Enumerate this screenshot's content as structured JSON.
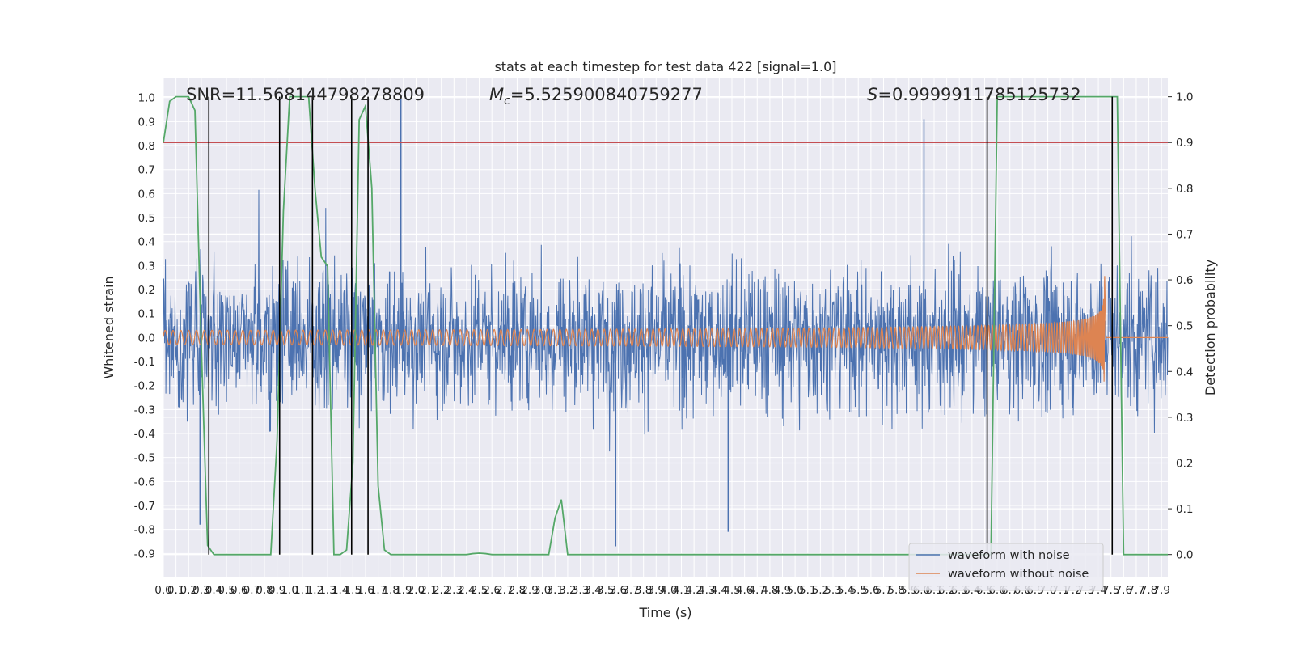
{
  "chart_data": {
    "type": "line",
    "title": "stats at each timestep for test data 422 [signal=1.0]",
    "xlabel": "Time (s)",
    "ylabel": "Whitened strain",
    "y2label": "Detection probability",
    "xlim": [
      0.0,
      7.95
    ],
    "ylim": [
      -1.0,
      1.08
    ],
    "y2lim": [
      -0.05,
      1.04
    ],
    "x_ticks": [
      0.0,
      0.1,
      0.2,
      0.3,
      0.4,
      0.5,
      0.6,
      0.7,
      0.8,
      0.9,
      1.0,
      1.1,
      1.2,
      1.3,
      1.4,
      1.5,
      1.6,
      1.7,
      1.8,
      1.9,
      2.0,
      2.1,
      2.2,
      2.3,
      2.4,
      2.5,
      2.6,
      2.7,
      2.8,
      2.9,
      3.0,
      3.1,
      3.2,
      3.3,
      3.4,
      3.5,
      3.6,
      3.7,
      3.8,
      3.9,
      4.0,
      4.1,
      4.2,
      4.3,
      4.4,
      4.5,
      4.6,
      4.7,
      4.8,
      4.9,
      5.0,
      5.1,
      5.2,
      5.3,
      5.4,
      5.5,
      5.6,
      5.7,
      5.8,
      5.9,
      6.0,
      6.1,
      6.2,
      6.3,
      6.4,
      6.5,
      6.6,
      6.7,
      6.8,
      6.9,
      7.0,
      7.1,
      7.2,
      7.3,
      7.4,
      7.5,
      7.6,
      7.7,
      7.8,
      7.9
    ],
    "y_ticks": [
      -0.9,
      -0.8,
      -0.7,
      -0.6,
      -0.5,
      -0.4,
      -0.3,
      -0.2,
      -0.1,
      0.0,
      0.1,
      0.2,
      0.3,
      0.4,
      0.5,
      0.6,
      0.7,
      0.8,
      0.9,
      1.0
    ],
    "y2_ticks": [
      0.0,
      0.1,
      0.2,
      0.3,
      0.4,
      0.5,
      0.6,
      0.7,
      0.8,
      0.9,
      1.0
    ],
    "grid": true,
    "legend_position": "lower-right",
    "annotations": {
      "snr": "SNR=11.568144798278809",
      "mc_symbol": "M",
      "mc_subscript": "c",
      "mc_value": "=5.525900840759277",
      "s_symbol": "S",
      "s_value": "=0.9999911785125732"
    },
    "colors": {
      "noise": "#4c72b0",
      "clean": "#dd8452",
      "probability": "#55a868",
      "threshold": "#c44e52",
      "triggers": "#000000",
      "background": "#eaeaf2"
    },
    "series": [
      {
        "name": "waveform with noise",
        "kind": "noise",
        "envelope_typical": 0.42,
        "envelope_peak": 0.75,
        "spikes": [
          [
            1.88,
            1.0
          ],
          [
            6.02,
            0.91
          ],
          [
            3.58,
            -0.87
          ],
          [
            0.29,
            -0.78
          ],
          [
            4.47,
            -0.81
          ]
        ]
      },
      {
        "name": "waveform without noise",
        "kind": "chirp",
        "t_start": 0.0,
        "t_merger": 7.45,
        "amp_start": 0.03,
        "amp_peak": 0.28,
        "freq_start": 16,
        "freq_end": 120
      },
      {
        "name": "detection probability",
        "axis": "right",
        "x": [
          0.0,
          0.05,
          0.1,
          0.15,
          0.2,
          0.25,
          0.3,
          0.35,
          0.4,
          0.45,
          0.5,
          0.55,
          0.6,
          0.65,
          0.7,
          0.75,
          0.8,
          0.85,
          0.9,
          0.95,
          1.0,
          1.05,
          1.1,
          1.15,
          1.2,
          1.25,
          1.3,
          1.35,
          1.4,
          1.45,
          1.5,
          1.55,
          1.6,
          1.65,
          1.7,
          1.75,
          1.8,
          1.85,
          1.9,
          1.95,
          2.0,
          2.05,
          2.1,
          2.15,
          2.2,
          2.25,
          2.3,
          2.35,
          2.4,
          2.45,
          2.5,
          2.55,
          2.6,
          2.65,
          2.7,
          2.75,
          2.8,
          2.85,
          2.9,
          2.95,
          3.0,
          3.05,
          3.1,
          3.15,
          3.2,
          3.25,
          3.3,
          3.35,
          3.4,
          3.45,
          3.5,
          3.55,
          3.6,
          3.65,
          3.7,
          3.75,
          3.8,
          3.85,
          3.9,
          3.95,
          4.0,
          4.05,
          4.1,
          4.15,
          4.2,
          4.25,
          4.3,
          4.35,
          4.4,
          4.45,
          4.5,
          4.55,
          4.6,
          4.65,
          4.7,
          4.75,
          4.8,
          4.85,
          4.9,
          4.95,
          5.0,
          5.05,
          5.1,
          5.15,
          5.2,
          5.25,
          5.3,
          5.35,
          5.4,
          5.45,
          5.5,
          5.55,
          5.6,
          5.65,
          5.7,
          5.75,
          5.8,
          5.85,
          5.9,
          5.95,
          6.0,
          6.05,
          6.1,
          6.15,
          6.2,
          6.25,
          6.3,
          6.35,
          6.4,
          6.45,
          6.5,
          6.55,
          6.6,
          6.65,
          6.7,
          6.75,
          6.8,
          6.85,
          6.9,
          6.95,
          7.0,
          7.05,
          7.1,
          7.15,
          7.2,
          7.25,
          7.3,
          7.35,
          7.4,
          7.45,
          7.5,
          7.55,
          7.6,
          7.65,
          7.7,
          7.75,
          7.8,
          7.85,
          7.9,
          7.95
        ],
        "y": [
          0.9,
          0.99,
          1.0,
          1.0,
          1.0,
          0.97,
          0.46,
          0.02,
          0.0,
          0.0,
          0.0,
          0.0,
          0.0,
          0.0,
          0.0,
          0.0,
          0.0,
          0.0,
          0.25,
          0.75,
          1.0,
          1.0,
          1.0,
          1.0,
          0.8,
          0.65,
          0.63,
          0.0,
          0.0,
          0.01,
          0.2,
          0.95,
          0.98,
          0.8,
          0.15,
          0.01,
          0.0,
          0.0,
          0.0,
          0.0,
          0.0,
          0.0,
          0.0,
          0.0,
          0.0,
          0.0,
          0.0,
          0.0,
          0.0,
          0.002,
          0.003,
          0.002,
          0.0,
          0.0,
          0.0,
          0.0,
          0.0,
          0.0,
          0.0,
          0.0,
          0.0,
          0.0,
          0.08,
          0.12,
          0.0,
          0.0,
          0.0,
          0.0,
          0.0,
          0.0,
          0.0,
          0.0,
          0.0,
          0.0,
          0.0,
          0.0,
          0.0,
          0.0,
          0.0,
          0.0,
          0.0,
          0.0,
          0.0,
          0.0,
          0.0,
          0.0,
          0.0,
          0.0,
          0.0,
          0.0,
          0.0,
          0.0,
          0.0,
          0.0,
          0.0,
          0.0,
          0.0,
          0.0,
          0.0,
          0.0,
          0.0,
          0.0,
          0.0,
          0.0,
          0.0,
          0.0,
          0.0,
          0.0,
          0.0,
          0.0,
          0.0,
          0.0,
          0.0,
          0.0,
          0.0,
          0.0,
          0.0,
          0.0,
          0.0,
          0.0,
          0.0,
          0.0,
          0.0,
          0.0,
          0.0,
          0.0,
          0.0,
          0.0,
          0.0,
          0.0,
          0.0,
          0.0,
          1.0,
          1.0,
          1.0,
          1.0,
          1.0,
          1.0,
          1.0,
          1.0,
          1.0,
          1.0,
          1.0,
          1.0,
          1.0,
          1.0,
          1.0,
          1.0,
          1.0,
          1.0,
          1.0,
          1.0,
          0.0,
          0.0,
          0.0,
          0.0,
          0.0,
          0.0,
          0.0,
          0.0
        ]
      }
    ],
    "threshold": 0.9,
    "trigger_times": [
      0.36,
      0.92,
      1.18,
      1.49,
      1.62,
      6.52,
      7.51
    ]
  }
}
